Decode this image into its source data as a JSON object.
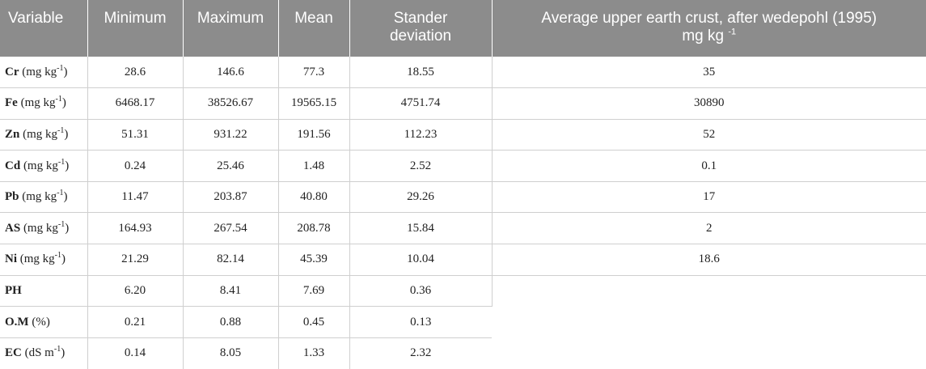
{
  "table": {
    "headers": {
      "variable": "Variable",
      "minimum": "Minimum",
      "maximum": "Maximum",
      "mean": "Mean",
      "std_line1": "Stander",
      "std_line2": "deviation",
      "crust_line1": "Average upper earth crust, after wedepohl (1995)",
      "crust_unit_base": "mg kg",
      "crust_unit_exp": "-1"
    },
    "rows": [
      {
        "name": "Cr",
        "unit_pre": "(mg kg",
        "unit_exp": "-1",
        "unit_post": ")",
        "min": "28.6",
        "max": "146.6",
        "mean": "77.3",
        "std": "18.55",
        "crust": "35"
      },
      {
        "name": "Fe",
        "unit_pre": "(mg kg",
        "unit_exp": "-1",
        "unit_post": ")",
        "min": "6468.17",
        "max": "38526.67",
        "mean": "19565.15",
        "std": "4751.74",
        "crust": "30890"
      },
      {
        "name": "Zn",
        "unit_pre": "(mg kg",
        "unit_exp": "-1",
        "unit_post": ")",
        "min": "51.31",
        "max": "931.22",
        "mean": "191.56",
        "std": "112.23",
        "crust": "52"
      },
      {
        "name": "Cd",
        "unit_pre": "(mg kg",
        "unit_exp": "-1",
        "unit_post": ")",
        "min": "0.24",
        "max": "25.46",
        "mean": "1.48",
        "std": "2.52",
        "crust": "0.1"
      },
      {
        "name": "Pb",
        "unit_pre": "(mg kg",
        "unit_exp": "-1",
        "unit_post": ")",
        "min": "11.47",
        "max": "203.87",
        "mean": "40.80",
        "std": "29.26",
        "crust": "17"
      },
      {
        "name": "AS",
        "unit_pre": "(mg kg",
        "unit_exp": "-1",
        "unit_post": ")",
        "min": "164.93",
        "max": "267.54",
        "mean": "208.78",
        "std": "15.84",
        "crust": "2"
      },
      {
        "name": "Ni",
        "unit_pre": "(mg kg",
        "unit_exp": "-1",
        "unit_post": ")",
        "min": "21.29",
        "max": "82.14",
        "mean": "45.39",
        "std": "10.04",
        "crust": "18.6"
      },
      {
        "name": "PH",
        "unit_pre": "",
        "unit_exp": "",
        "unit_post": "",
        "min": "6.20",
        "max": "8.41",
        "mean": "7.69",
        "std": "0.36",
        "crust": ""
      },
      {
        "name": "O.M",
        "unit_pre": "(%)",
        "unit_exp": "",
        "unit_post": "",
        "min": "0.21",
        "max": "0.88",
        "mean": "0.45",
        "std": "0.13",
        "crust": ""
      },
      {
        "name": "EC",
        "unit_pre": "(dS m",
        "unit_exp": "-1",
        "unit_post": ")",
        "min": "0.14",
        "max": "8.05",
        "mean": "1.33",
        "std": "2.32",
        "crust": ""
      }
    ]
  }
}
